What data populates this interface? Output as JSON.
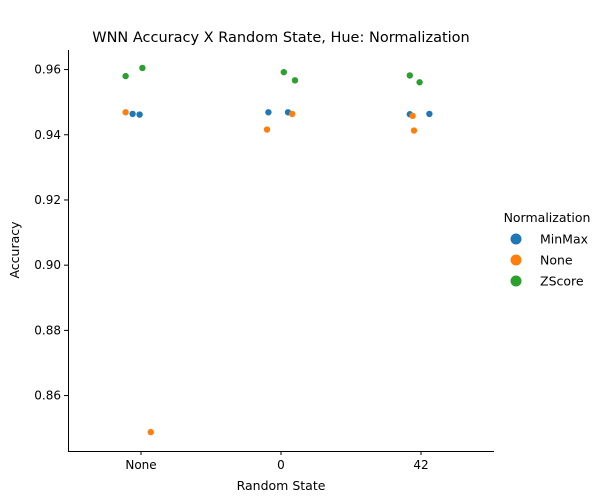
{
  "chart_data": {
    "type": "scatter",
    "title": "WNN Accuracy X Random State, Hue: Normalization",
    "xlabel": "Random State",
    "ylabel": "Accuracy",
    "categories": [
      "None",
      "0",
      "42"
    ],
    "ylim": [
      0.843,
      0.966
    ],
    "yticks": [
      "0.86",
      "0.88",
      "0.90",
      "0.92",
      "0.94",
      "0.96"
    ],
    "grid": false,
    "legend": {
      "title": "Normalization",
      "placement": "right"
    },
    "series": [
      {
        "name": "MinMax",
        "color": "#1f77b4",
        "points": [
          {
            "category": "None",
            "jitter": -0.06,
            "value": 0.9464
          },
          {
            "category": "None",
            "jitter": -0.01,
            "value": 0.9462
          },
          {
            "category": "0",
            "jitter": -0.09,
            "value": 0.9469
          },
          {
            "category": "0",
            "jitter": 0.05,
            "value": 0.9469
          },
          {
            "category": "42",
            "jitter": -0.08,
            "value": 0.9463
          },
          {
            "category": "42",
            "jitter": 0.06,
            "value": 0.9464
          }
        ]
      },
      {
        "name": "None",
        "color": "#ff7f0e",
        "points": [
          {
            "category": "None",
            "jitter": -0.11,
            "value": 0.9469
          },
          {
            "category": "None",
            "jitter": 0.07,
            "value": 0.8488
          },
          {
            "category": "0",
            "jitter": -0.1,
            "value": 0.9416
          },
          {
            "category": "0",
            "jitter": 0.08,
            "value": 0.9464
          },
          {
            "category": "42",
            "jitter": -0.06,
            "value": 0.9458
          },
          {
            "category": "42",
            "jitter": -0.05,
            "value": 0.9413
          }
        ]
      },
      {
        "name": "ZScore",
        "color": "#2ca02c",
        "points": [
          {
            "category": "None",
            "jitter": -0.11,
            "value": 0.958
          },
          {
            "category": "None",
            "jitter": 0.01,
            "value": 0.9605
          },
          {
            "category": "0",
            "jitter": 0.02,
            "value": 0.9592
          },
          {
            "category": "0",
            "jitter": 0.1,
            "value": 0.9567
          },
          {
            "category": "42",
            "jitter": -0.08,
            "value": 0.9582
          },
          {
            "category": "42",
            "jitter": -0.01,
            "value": 0.9561
          }
        ]
      }
    ]
  }
}
